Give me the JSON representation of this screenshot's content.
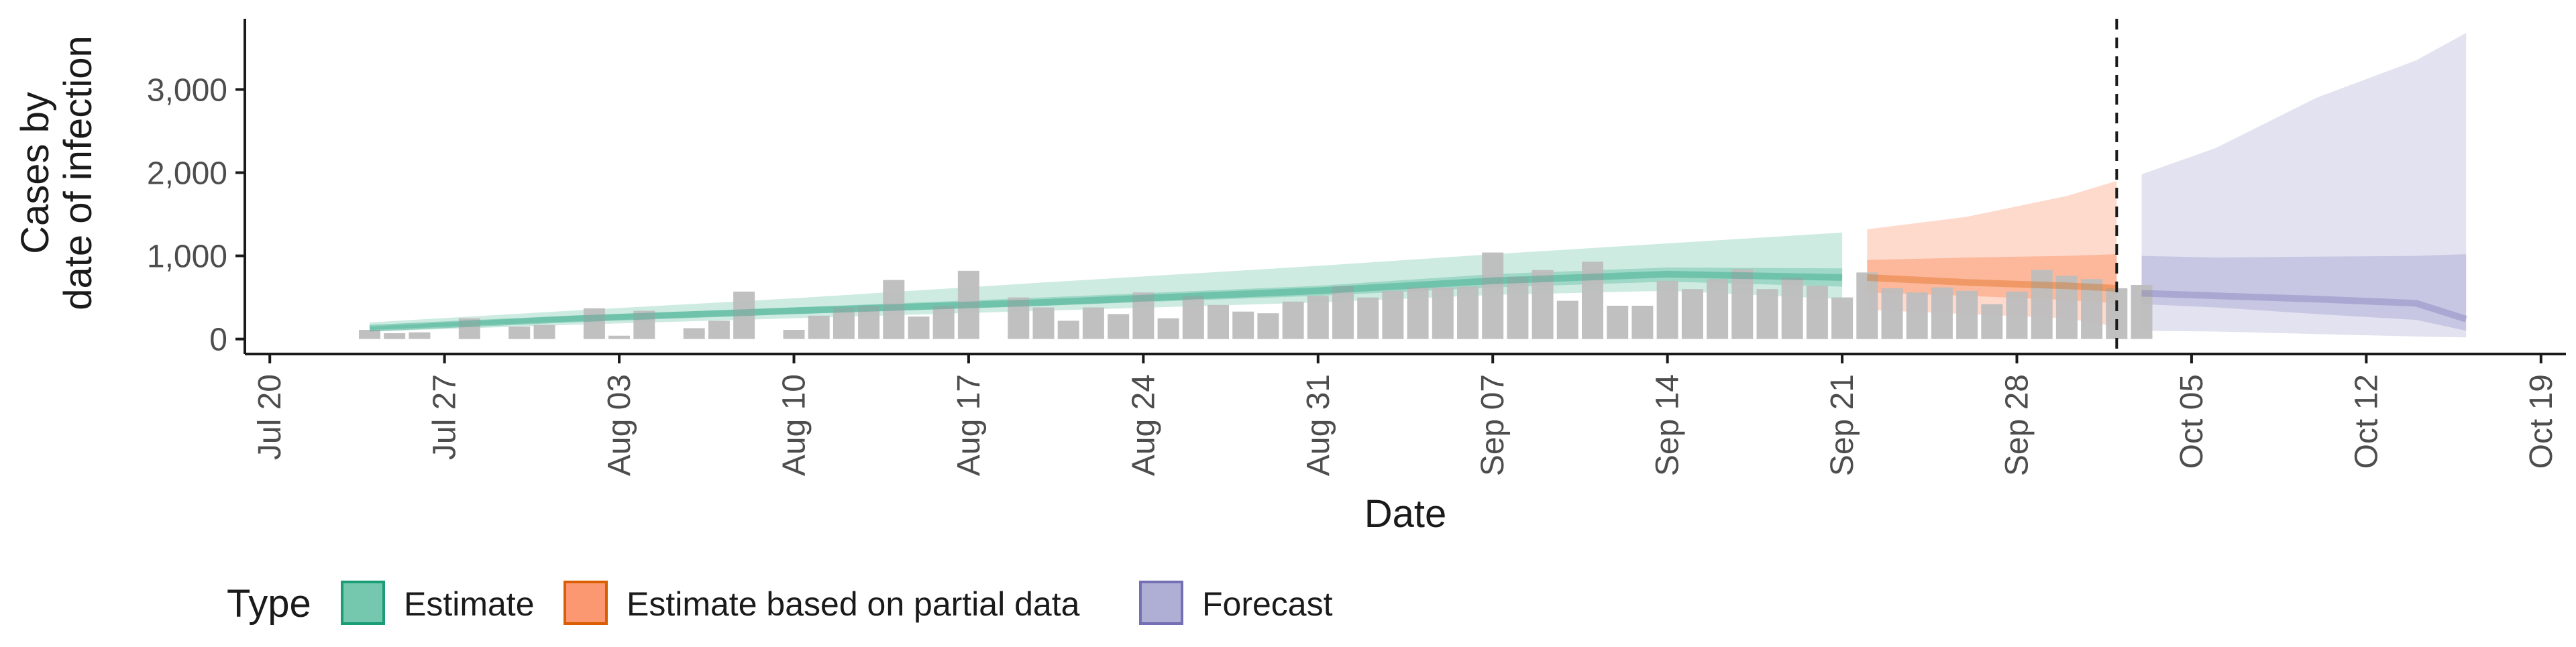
{
  "chart_data": {
    "type": "bar",
    "title": "",
    "xlabel": "Date",
    "ylabel": "Cases by\ndate of infection",
    "ylabel_lines": [
      "Cases by",
      "date of infection"
    ],
    "ylim": [
      -180,
      3850
    ],
    "y_ticks": [
      0,
      1000,
      2000,
      3000
    ],
    "y_tick_labels": [
      "0",
      "1,000",
      "2,000",
      "3,000"
    ],
    "xlim": [
      "2020-07-19",
      "2020-10-20"
    ],
    "x_ticks": [
      "2020-07-20",
      "2020-07-27",
      "2020-08-03",
      "2020-08-10",
      "2020-08-17",
      "2020-08-24",
      "2020-08-31",
      "2020-09-07",
      "2020-09-14",
      "2020-09-21",
      "2020-09-28",
      "2020-10-05",
      "2020-10-12",
      "2020-10-19"
    ],
    "x_tick_labels": [
      "Jul 20",
      "Jul 27",
      "Aug 03",
      "Aug 10",
      "Aug 17",
      "Aug 24",
      "Aug 31",
      "Sep 07",
      "Sep 14",
      "Sep 21",
      "Sep 28",
      "Oct 05",
      "Oct 12",
      "Oct 19"
    ],
    "bar_color": "#bdbdbd",
    "vline_date": "2020-10-02",
    "legend": {
      "title": "Type",
      "placement": "bottom",
      "items": [
        {
          "label": "Estimate",
          "fill": "#66c2a5",
          "stroke": "#1b9e77"
        },
        {
          "label": "Estimate based on partial data",
          "fill": "#fc8d62",
          "stroke": "#d95f02"
        },
        {
          "label": "Forecast",
          "fill": "#a6a6d2",
          "stroke": "#7570b3"
        }
      ]
    },
    "observed_cases": {
      "start_date": "2020-07-24",
      "values": [
        110,
        70,
        80,
        0,
        250,
        0,
        150,
        170,
        0,
        370,
        40,
        340,
        0,
        130,
        220,
        570,
        0,
        110,
        280,
        380,
        400,
        710,
        270,
        400,
        820,
        0,
        500,
        380,
        220,
        380,
        300,
        560,
        250,
        520,
        410,
        330,
        310,
        450,
        520,
        640,
        500,
        580,
        620,
        620,
        630,
        1040,
        750,
        830,
        460,
        930,
        400,
        400,
        700,
        600,
        720,
        840,
        600,
        740,
        640,
        500,
        800,
        610,
        560,
        620,
        580,
        420,
        570,
        830,
        760,
        720,
        610,
        650
      ]
    },
    "series": [
      {
        "name": "Estimate",
        "dates": [
          "2020-07-24",
          "2020-08-01",
          "2020-08-10",
          "2020-08-20",
          "2020-08-31",
          "2020-09-07",
          "2020-09-14",
          "2020-09-21"
        ],
        "median": [
          130,
          240,
          340,
          440,
          580,
          700,
          780,
          740
        ],
        "lower_50": [
          110,
          210,
          300,
          400,
          520,
          620,
          690,
          630
        ],
        "upper_50": [
          150,
          280,
          380,
          500,
          640,
          780,
          860,
          850
        ],
        "lower_90": [
          90,
          170,
          250,
          340,
          440,
          530,
          580,
          480
        ],
        "upper_90": [
          200,
          340,
          490,
          680,
          880,
          1020,
          1150,
          1280
        ]
      },
      {
        "name": "Estimate based on partial data",
        "dates": [
          "2020-09-22",
          "2020-09-26",
          "2020-09-30",
          "2020-10-02"
        ],
        "median": [
          740,
          680,
          640,
          610
        ],
        "lower_50": [
          560,
          520,
          470,
          430
        ],
        "upper_50": [
          950,
          980,
          1000,
          1020
        ],
        "lower_90": [
          350,
          300,
          250,
          150
        ],
        "upper_90": [
          1320,
          1470,
          1720,
          1900
        ]
      },
      {
        "name": "Forecast",
        "dates": [
          "2020-10-03",
          "2020-10-06",
          "2020-10-10",
          "2020-10-14",
          "2020-10-16"
        ],
        "median": [
          550,
          520,
          480,
          430,
          240
        ],
        "lower_50": [
          420,
          380,
          300,
          230,
          100
        ],
        "upper_50": [
          1000,
          980,
          990,
          1000,
          1020
        ],
        "lower_90": [
          100,
          90,
          60,
          30,
          20
        ],
        "upper_90": [
          1980,
          2300,
          2900,
          3350,
          3680
        ]
      }
    ]
  }
}
